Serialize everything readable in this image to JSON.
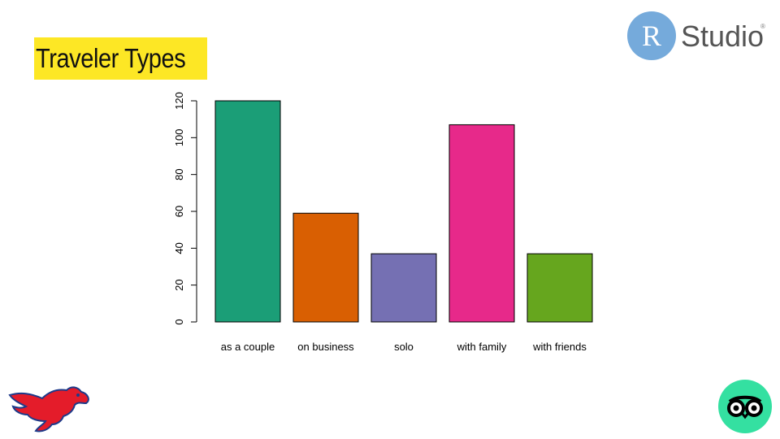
{
  "header": {
    "title": "Traveler Types"
  },
  "logos": {
    "rstudio": {
      "letter": "R",
      "word": "Studio",
      "mark": "®"
    },
    "smu": "smu-mustang-logo",
    "tripadvisor": "tripadvisor-owl-icon"
  },
  "chart_data": {
    "type": "bar",
    "title": "",
    "xlabel": "",
    "ylabel": "",
    "categories": [
      "as a couple",
      "on business",
      "solo",
      "with family",
      "with friends"
    ],
    "values": [
      120,
      59,
      37,
      107,
      37
    ],
    "colors": [
      "#1b9e77",
      "#d95f02",
      "#7570b3",
      "#e7298a",
      "#66a61e"
    ],
    "ylim": [
      0,
      120
    ],
    "yticks": [
      0,
      20,
      40,
      60,
      80,
      100,
      120
    ],
    "grid": false,
    "legend": "none"
  }
}
